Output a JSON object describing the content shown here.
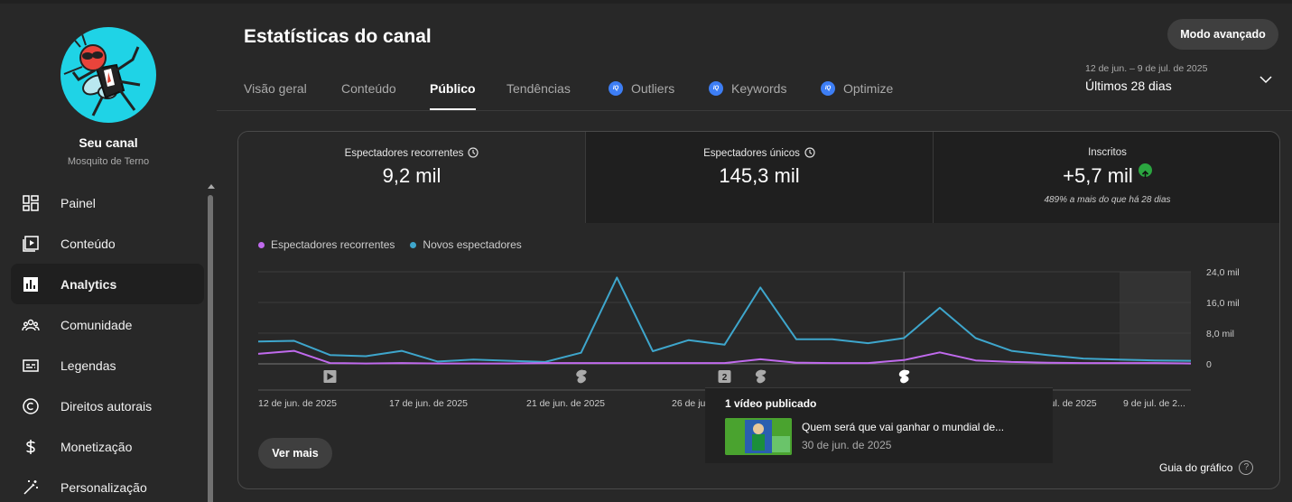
{
  "sidebar": {
    "channel_title": "Seu canal",
    "channel_name": "Mosquito de Terno",
    "items": [
      {
        "label": "Painel",
        "icon": "dashboard-icon"
      },
      {
        "label": "Conteúdo",
        "icon": "content-icon"
      },
      {
        "label": "Analytics",
        "icon": "analytics-icon",
        "active": true
      },
      {
        "label": "Comunidade",
        "icon": "community-icon"
      },
      {
        "label": "Legendas",
        "icon": "subtitles-icon"
      },
      {
        "label": "Direitos autorais",
        "icon": "copyright-icon"
      },
      {
        "label": "Monetização",
        "icon": "dollar-icon"
      },
      {
        "label": "Personalização",
        "icon": "magic-wand-icon"
      }
    ]
  },
  "header": {
    "title": "Estatísticas do canal",
    "advanced_button": "Modo avançado",
    "tabs": [
      {
        "label": "Visão geral"
      },
      {
        "label": "Conteúdo"
      },
      {
        "label": "Público",
        "active": true
      },
      {
        "label": "Tendências"
      },
      {
        "label": "Outliers",
        "ext": true
      },
      {
        "label": "Keywords",
        "ext": true
      },
      {
        "label": "Optimize",
        "ext": true
      }
    ],
    "date_range": "12 de jun. – 9 de jul. de 2025",
    "date_label": "Últimos 28 dias"
  },
  "metrics": [
    {
      "label": "Espectadores recorrentes",
      "value": "9,2 mil"
    },
    {
      "label": "Espectadores únicos",
      "value": "145,3 mil"
    },
    {
      "label": "Inscritos",
      "value": "+5,7 mil",
      "note": "489% a mais do que há 28 dias"
    }
  ],
  "chart_data": {
    "type": "line",
    "series": [
      {
        "name": "Espectadores recorrentes",
        "color": "#c06aed",
        "values": [
          2.6,
          3.4,
          0.2,
          0.1,
          0.2,
          0.1,
          0.1,
          0.1,
          0.2,
          0.2,
          0.2,
          0.2,
          0.2,
          0.2,
          1.2,
          0.3,
          0.2,
          0.2,
          1.0,
          3.0,
          0.9,
          0.5,
          0.3,
          0.2,
          0.2,
          0.2,
          0.1
        ]
      },
      {
        "name": "Novos espectadores",
        "color": "#3ea6cc",
        "values": [
          5.8,
          6.0,
          2.3,
          2.0,
          3.4,
          0.6,
          1.1,
          0.8,
          0.5,
          2.9,
          22.5,
          3.3,
          6.2,
          5.0,
          19.9,
          6.4,
          6.4,
          5.4,
          6.7,
          14.6,
          6.7,
          3.4,
          2.3,
          1.4,
          1.1,
          0.9,
          0.8
        ]
      }
    ],
    "x_tick_labels": [
      "12 de jun. de 2025",
      "17 de jun. de 2025",
      "21 de jun. de 2025",
      "26 de jun. de 2025",
      "30 de jun. de 2025",
      "5 de jul. de 2025",
      "9 de jul. de 2..."
    ],
    "y_tick_labels": [
      "24,0 mil",
      "16,0 mil",
      "8,0 mil",
      "0"
    ],
    "ylim": [
      0,
      24
    ],
    "legend_position": "top-left",
    "grid": true,
    "markers": [
      {
        "index": 2,
        "icon": "video-icon"
      },
      {
        "index": 9,
        "icon": "shorts-icon"
      },
      {
        "index": 13,
        "icon": "count-badge-icon",
        "text": "2"
      },
      {
        "index": 14,
        "icon": "shorts-icon"
      },
      {
        "index": 18,
        "icon": "shorts-icon",
        "selected": true
      }
    ]
  },
  "tooltip": {
    "title": "1 vídeo publicado",
    "video_title": "Quem será que vai ganhar o mundial de...",
    "video_date": "30 de jun. de 2025"
  },
  "footer": {
    "more_button": "Ver mais",
    "guide_label": "Guia do gráfico"
  }
}
